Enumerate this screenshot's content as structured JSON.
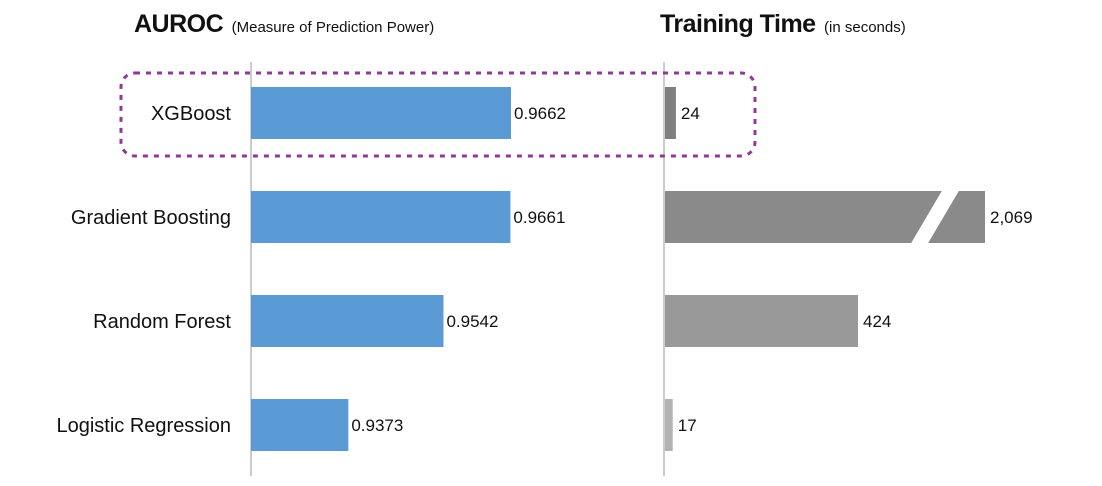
{
  "chart_data": [
    {
      "type": "bar",
      "orientation": "horizontal",
      "title": "AUROC",
      "subtitle": "(Measure of Prediction Power)",
      "categories": [
        "XGBoost",
        "Gradient Boosting",
        "Random Forest",
        "Logistic Regression"
      ],
      "values": [
        0.9662,
        0.9661,
        0.9542,
        0.9373
      ],
      "value_labels": [
        "0.9662",
        "0.9661",
        "0.9542",
        "0.9373"
      ],
      "xlim": [
        0.92,
        0.9662
      ],
      "bar_color": "#5b9bd5",
      "grid": false
    },
    {
      "type": "bar",
      "orientation": "horizontal",
      "title": "Training Time",
      "subtitle": "(in seconds)",
      "categories": [
        "XGBoost",
        "Gradient Boosting",
        "Random Forest",
        "Logistic Regression"
      ],
      "values": [
        24,
        2069,
        424,
        17
      ],
      "value_labels": [
        "24",
        "2,069",
        "424",
        "17"
      ],
      "axis_break": true,
      "bar_colors": [
        "#7f7f7f",
        "#8a8a8a",
        "#999999",
        "#b3b3b3"
      ],
      "grid": false
    }
  ],
  "highlight": {
    "category": "XGBoost",
    "style": "dashed",
    "color": "#8e3a96"
  },
  "colors": {
    "axis": "#999999",
    "label": "#111111"
  }
}
